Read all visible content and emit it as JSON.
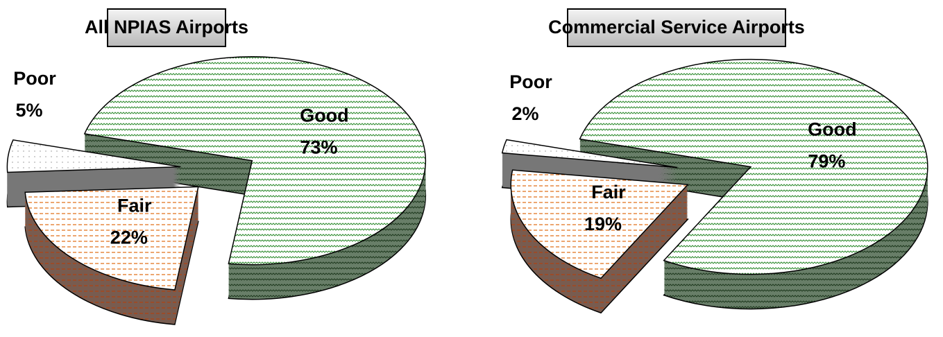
{
  "chart_data": [
    {
      "type": "pie",
      "title": "All NPIAS Airports",
      "categories": [
        "Good",
        "Fair",
        "Poor"
      ],
      "values": [
        73,
        22,
        5
      ],
      "value_labels": [
        "73%",
        "22%",
        "5%"
      ],
      "colors": [
        "#2e8b2e",
        "#e06a10",
        "#8a8a8a"
      ]
    },
    {
      "type": "pie",
      "title": "Commercial Service Airports",
      "categories": [
        "Good",
        "Fair",
        "Poor"
      ],
      "values": [
        79,
        19,
        2
      ],
      "value_labels": [
        "79%",
        "19%",
        "2%"
      ],
      "colors": [
        "#2e8b2e",
        "#e06a10",
        "#8a8a8a"
      ]
    }
  ]
}
